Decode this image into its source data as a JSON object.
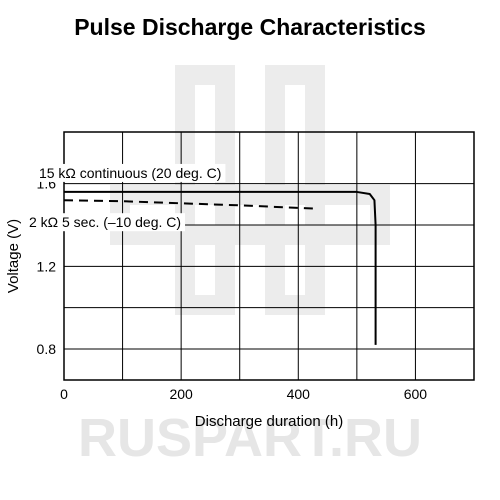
{
  "watermark": {
    "text": "RUSPART.RU",
    "color": "#e6e6e6"
  },
  "chart_data": {
    "type": "line",
    "title": "Pulse Discharge Characteristics",
    "xlabel": "Discharge duration (h)",
    "ylabel": "Voltage (V)",
    "xlim": [
      0,
      700
    ],
    "ylim": [
      0.65,
      1.85
    ],
    "xticks": [
      0,
      200,
      400,
      600
    ],
    "yticks": [
      0.8,
      1.2,
      1.6
    ],
    "xtick_labels": [
      "0",
      "200",
      "400",
      "600"
    ],
    "ytick_labels": [
      "0.8",
      "1.2",
      "1.6"
    ],
    "x_grid": [
      100,
      200,
      300,
      400,
      500,
      600
    ],
    "y_grid": [
      0.8,
      1.0,
      1.2,
      1.4,
      1.6
    ],
    "grid": true,
    "series": [
      {
        "name": "15 kΩ continuous (20 deg. C)",
        "style": "solid",
        "color": "#000000",
        "x": [
          0,
          300,
          500,
          522,
          530,
          532,
          532
        ],
        "y": [
          1.56,
          1.56,
          1.56,
          1.55,
          1.52,
          1.4,
          0.82
        ]
      },
      {
        "name": "2 kΩ 5 sec. (–10 deg. C)",
        "style": "dashed",
        "color": "#000000",
        "x": [
          0,
          100,
          200,
          300,
          425
        ],
        "y": [
          1.52,
          1.515,
          1.505,
          1.495,
          1.48
        ]
      }
    ]
  }
}
